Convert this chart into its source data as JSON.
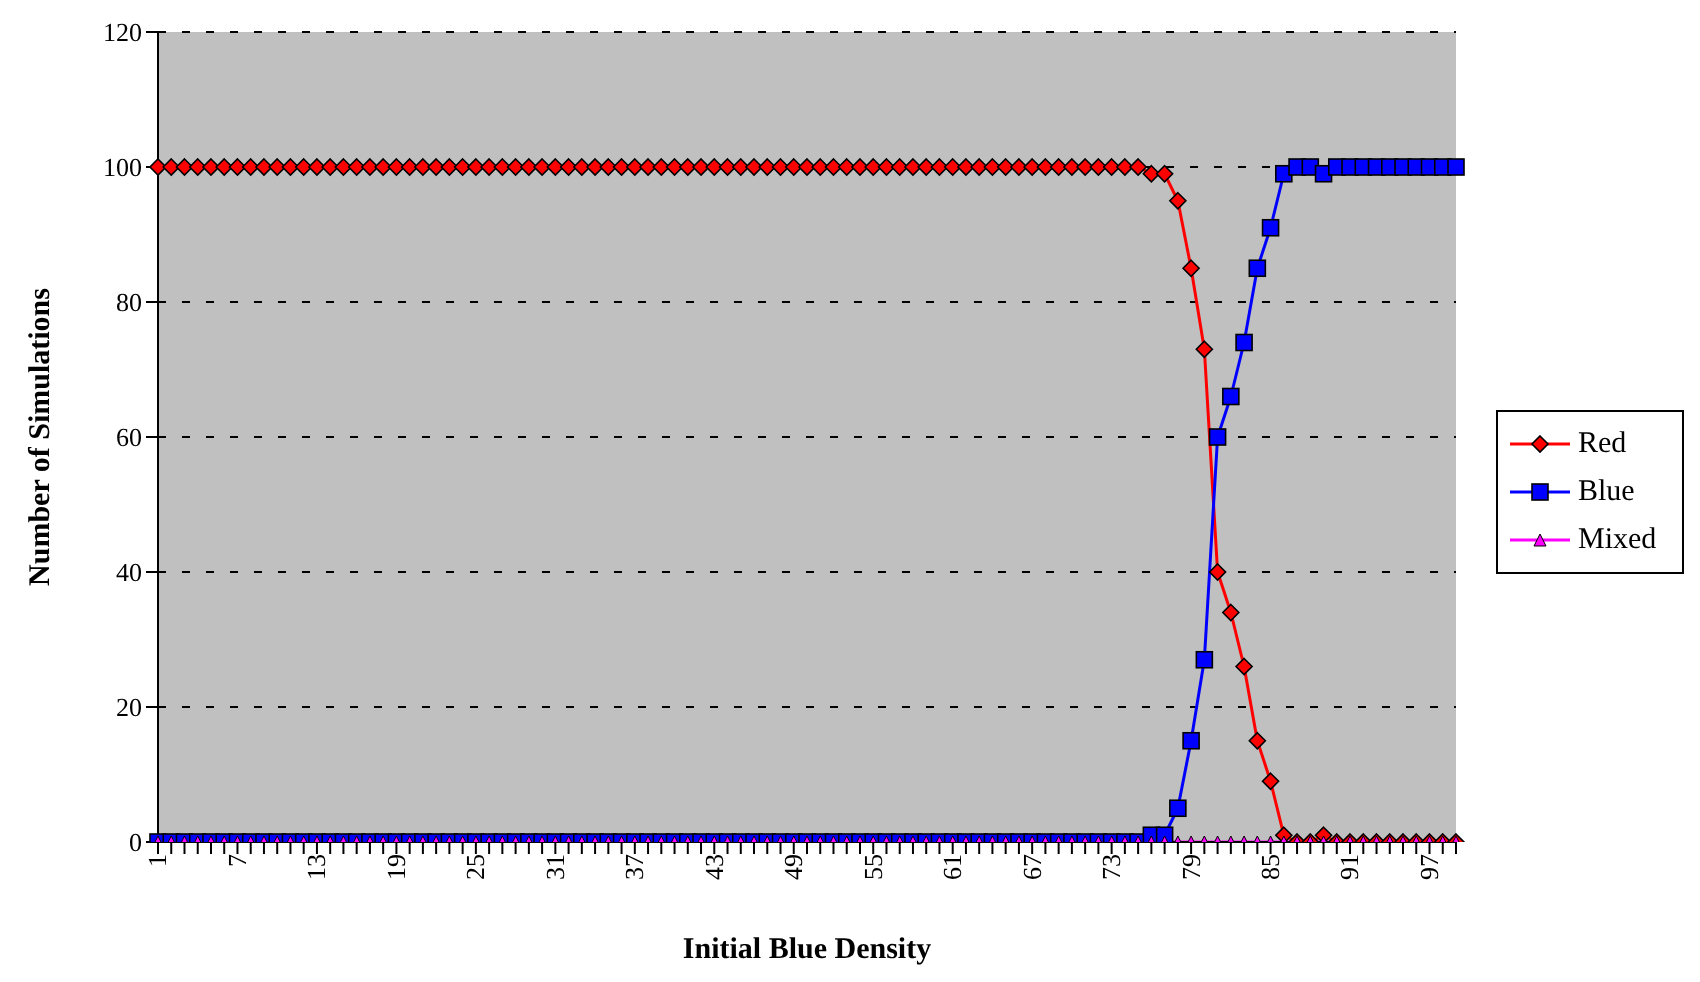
{
  "chart_data": {
    "type": "line",
    "xlabel": "Initial Blue Density",
    "ylabel": "Number of Simulations",
    "categories": [
      "1",
      null,
      null,
      null,
      null,
      null,
      "7",
      null,
      null,
      null,
      null,
      null,
      "13",
      null,
      null,
      null,
      null,
      null,
      "19",
      null,
      null,
      null,
      null,
      null,
      "25",
      null,
      null,
      null,
      null,
      null,
      "31",
      null,
      null,
      null,
      null,
      null,
      "37",
      null,
      null,
      null,
      null,
      null,
      "43",
      null,
      null,
      null,
      null,
      null,
      "49",
      null,
      null,
      null,
      null,
      null,
      "55",
      null,
      null,
      null,
      null,
      null,
      "61",
      null,
      null,
      null,
      null,
      null,
      "67",
      null,
      null,
      null,
      null,
      null,
      "73",
      null,
      null,
      null,
      null,
      null,
      "79",
      null,
      null,
      null,
      null,
      null,
      "85",
      null,
      null,
      null,
      null,
      null,
      "91",
      null,
      null,
      null,
      null,
      null,
      "97",
      null,
      null
    ],
    "series": [
      {
        "name": "Red",
        "color": "#ff0000",
        "marker": "diamond",
        "values": [
          100,
          100,
          100,
          100,
          100,
          100,
          100,
          100,
          100,
          100,
          100,
          100,
          100,
          100,
          100,
          100,
          100,
          100,
          100,
          100,
          100,
          100,
          100,
          100,
          100,
          100,
          100,
          100,
          100,
          100,
          100,
          100,
          100,
          100,
          100,
          100,
          100,
          100,
          100,
          100,
          100,
          100,
          100,
          100,
          100,
          100,
          100,
          100,
          100,
          100,
          100,
          100,
          100,
          100,
          100,
          100,
          100,
          100,
          100,
          100,
          100,
          100,
          100,
          100,
          100,
          100,
          100,
          100,
          100,
          100,
          100,
          100,
          100,
          100,
          100,
          99,
          99,
          95,
          85,
          73,
          40,
          34,
          26,
          15,
          9,
          1,
          0,
          0,
          1,
          0,
          0,
          0,
          0,
          0,
          0,
          0,
          0,
          0,
          0
        ]
      },
      {
        "name": "Blue",
        "color": "#0000ff",
        "marker": "square",
        "values": [
          0,
          0,
          0,
          0,
          0,
          0,
          0,
          0,
          0,
          0,
          0,
          0,
          0,
          0,
          0,
          0,
          0,
          0,
          0,
          0,
          0,
          0,
          0,
          0,
          0,
          0,
          0,
          0,
          0,
          0,
          0,
          0,
          0,
          0,
          0,
          0,
          0,
          0,
          0,
          0,
          0,
          0,
          0,
          0,
          0,
          0,
          0,
          0,
          0,
          0,
          0,
          0,
          0,
          0,
          0,
          0,
          0,
          0,
          0,
          0,
          0,
          0,
          0,
          0,
          0,
          0,
          0,
          0,
          0,
          0,
          0,
          0,
          0,
          0,
          0,
          1,
          1,
          5,
          15,
          27,
          60,
          66,
          74,
          85,
          91,
          99,
          100,
          100,
          99,
          100,
          100,
          100,
          100,
          100,
          100,
          100,
          100,
          100,
          100
        ]
      },
      {
        "name": "Mixed",
        "color": "#ff00ff",
        "marker": "triangle",
        "values": [
          0,
          0,
          0,
          0,
          0,
          0,
          0,
          0,
          0,
          0,
          0,
          0,
          0,
          0,
          0,
          0,
          0,
          0,
          0,
          0,
          0,
          0,
          0,
          0,
          0,
          0,
          0,
          0,
          0,
          0,
          0,
          0,
          0,
          0,
          0,
          0,
          0,
          0,
          0,
          0,
          0,
          0,
          0,
          0,
          0,
          0,
          0,
          0,
          0,
          0,
          0,
          0,
          0,
          0,
          0,
          0,
          0,
          0,
          0,
          0,
          0,
          0,
          0,
          0,
          0,
          0,
          0,
          0,
          0,
          0,
          0,
          0,
          0,
          0,
          0,
          0,
          0,
          0,
          0,
          0,
          0,
          0,
          0,
          0,
          0,
          0,
          0,
          0,
          0,
          0,
          0,
          0,
          0,
          0,
          0,
          0,
          0,
          0,
          0
        ]
      }
    ],
    "ylim": [
      0,
      120
    ],
    "yticks": [
      0,
      20,
      40,
      60,
      80,
      100,
      120
    ],
    "grid": "y",
    "legend": "right"
  }
}
